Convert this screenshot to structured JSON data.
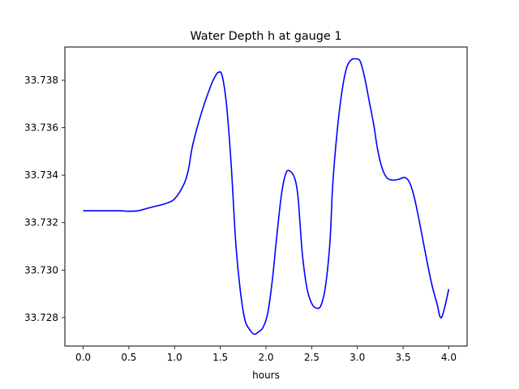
{
  "chart_data": {
    "type": "line",
    "title": "Water Depth h at gauge 1",
    "xlabel": "hours",
    "ylabel": "",
    "xlim": [
      -0.2,
      4.2
    ],
    "ylim": [
      33.7268,
      33.7394
    ],
    "x_ticks": [
      0.0,
      0.5,
      1.0,
      1.5,
      2.0,
      2.5,
      3.0,
      3.5,
      4.0
    ],
    "x_tick_labels": [
      "0.0",
      "0.5",
      "1.0",
      "1.5",
      "2.0",
      "2.5",
      "3.0",
      "3.5",
      "4.0"
    ],
    "y_ticks": [
      33.728,
      33.73,
      33.732,
      33.734,
      33.736,
      33.738
    ],
    "y_tick_labels": [
      "33.728",
      "33.730",
      "33.732",
      "33.734",
      "33.736",
      "33.738"
    ],
    "grid": false,
    "series": [
      {
        "color": "#0000ff",
        "x": [
          0.0,
          0.2,
          0.4,
          0.5,
          0.6,
          0.7,
          0.8,
          0.9,
          1.0,
          1.1,
          1.15,
          1.2,
          1.3,
          1.4,
          1.45,
          1.48,
          1.52,
          1.57,
          1.62,
          1.67,
          1.72,
          1.77,
          1.82,
          1.87,
          1.92,
          1.97,
          2.02,
          2.07,
          2.12,
          2.17,
          2.22,
          2.27,
          2.32,
          2.35,
          2.37,
          2.4,
          2.45,
          2.5,
          2.55,
          2.6,
          2.65,
          2.7,
          2.73,
          2.78,
          2.83,
          2.88,
          2.93,
          2.98,
          3.03,
          3.08,
          3.13,
          3.18,
          3.22,
          3.27,
          3.32,
          3.37,
          3.42,
          3.47,
          3.52,
          3.57,
          3.62,
          3.67,
          3.72,
          3.77,
          3.82,
          3.87,
          3.92,
          4.0
        ],
        "y": [
          33.7325,
          33.7325,
          33.7325,
          33.73248,
          33.7325,
          33.7326,
          33.7327,
          33.7328,
          33.733,
          33.7336,
          33.7342,
          33.7353,
          33.7367,
          33.7378,
          33.7382,
          33.73833,
          33.7382,
          33.7369,
          33.7344,
          33.7311,
          33.7291,
          33.7279,
          33.7275,
          33.7273,
          33.7274,
          33.7276,
          33.7282,
          33.7296,
          33.7315,
          33.7332,
          33.7341,
          33.73415,
          33.7338,
          33.7331,
          33.7321,
          33.7306,
          33.7292,
          33.7286,
          33.7284,
          33.7285,
          33.7293,
          33.7312,
          33.7336,
          33.7359,
          33.7375,
          33.7385,
          33.73885,
          33.7389,
          33.7388,
          33.7381,
          33.7371,
          33.7361,
          33.7351,
          33.7343,
          33.7339,
          33.7338,
          33.7338,
          33.73385,
          33.7339,
          33.7337,
          33.7331,
          33.7322,
          33.7312,
          33.7302,
          33.7293,
          33.7286,
          33.728,
          33.7292
        ]
      }
    ]
  }
}
